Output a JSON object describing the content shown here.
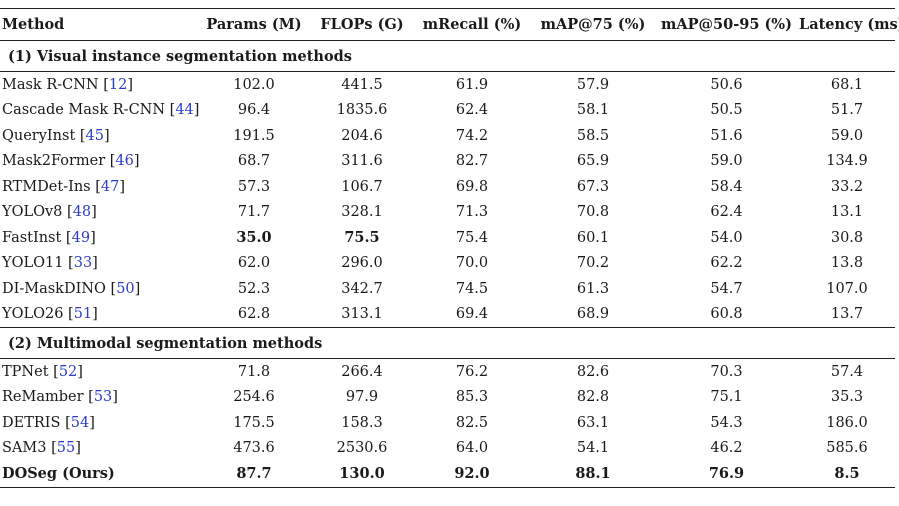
{
  "columns": [
    "Method",
    "Params (M)",
    "FLOPs (G)",
    "mRecall (%)",
    "mAP@75 (%)",
    "mAP@50-95 (%)",
    "Latency (ms)"
  ],
  "sections": [
    {
      "title": "(1) Visual instance segmentation methods",
      "rows": [
        {
          "name": "Mask R-CNN",
          "ref": "12",
          "cells": [
            "102.0",
            "441.5",
            "61.9",
            "57.9",
            "50.6",
            "68.1"
          ],
          "bold": []
        },
        {
          "name": "Cascade Mask R-CNN",
          "ref": "44",
          "cells": [
            "96.4",
            "1835.6",
            "62.4",
            "58.1",
            "50.5",
            "51.7"
          ],
          "bold": []
        },
        {
          "name": "QueryInst",
          "ref": "45",
          "cells": [
            "191.5",
            "204.6",
            "74.2",
            "58.5",
            "51.6",
            "59.0"
          ],
          "bold": []
        },
        {
          "name": "Mask2Former",
          "ref": "46",
          "cells": [
            "68.7",
            "311.6",
            "82.7",
            "65.9",
            "59.0",
            "134.9"
          ],
          "bold": []
        },
        {
          "name": "RTMDet-Ins",
          "ref": "47",
          "cells": [
            "57.3",
            "106.7",
            "69.8",
            "67.3",
            "58.4",
            "33.2"
          ],
          "bold": []
        },
        {
          "name": "YOLOv8",
          "ref": "48",
          "cells": [
            "71.7",
            "328.1",
            "71.3",
            "70.8",
            "62.4",
            "13.1"
          ],
          "bold": []
        },
        {
          "name": "FastInst",
          "ref": "49",
          "cells": [
            "35.0",
            "75.5",
            "75.4",
            "60.1",
            "54.0",
            "30.8"
          ],
          "bold": [
            0,
            1
          ]
        },
        {
          "name": "YOLO11",
          "ref": "33",
          "cells": [
            "62.0",
            "296.0",
            "70.0",
            "70.2",
            "62.2",
            "13.8"
          ],
          "bold": []
        },
        {
          "name": "DI-MaskDINO",
          "ref": "50",
          "cells": [
            "52.3",
            "342.7",
            "74.5",
            "61.3",
            "54.7",
            "107.0"
          ],
          "bold": []
        },
        {
          "name": "YOLO26",
          "ref": "51",
          "cells": [
            "62.8",
            "313.1",
            "69.4",
            "68.9",
            "60.8",
            "13.7"
          ],
          "bold": []
        }
      ]
    },
    {
      "title": "(2) Multimodal segmentation methods",
      "rows": [
        {
          "name": "TPNet",
          "ref": "52",
          "cells": [
            "71.8",
            "266.4",
            "76.2",
            "82.6",
            "70.3",
            "57.4"
          ],
          "bold": []
        },
        {
          "name": "ReMamber",
          "ref": "53",
          "cells": [
            "254.6",
            "97.9",
            "85.3",
            "82.8",
            "75.1",
            "35.3"
          ],
          "bold": []
        },
        {
          "name": "DETRIS",
          "ref": "54",
          "cells": [
            "175.5",
            "158.3",
            "82.5",
            "63.1",
            "54.3",
            "186.0"
          ],
          "bold": []
        },
        {
          "name": "SAM3",
          "ref": "55",
          "cells": [
            "473.6",
            "2530.6",
            "64.0",
            "54.1",
            "46.2",
            "585.6"
          ],
          "bold": []
        }
      ]
    }
  ],
  "ours": {
    "name": "DOSeg (Ours)",
    "cells": [
      "87.7",
      "130.0",
      "92.0",
      "88.1",
      "76.9",
      "8.5"
    ]
  }
}
